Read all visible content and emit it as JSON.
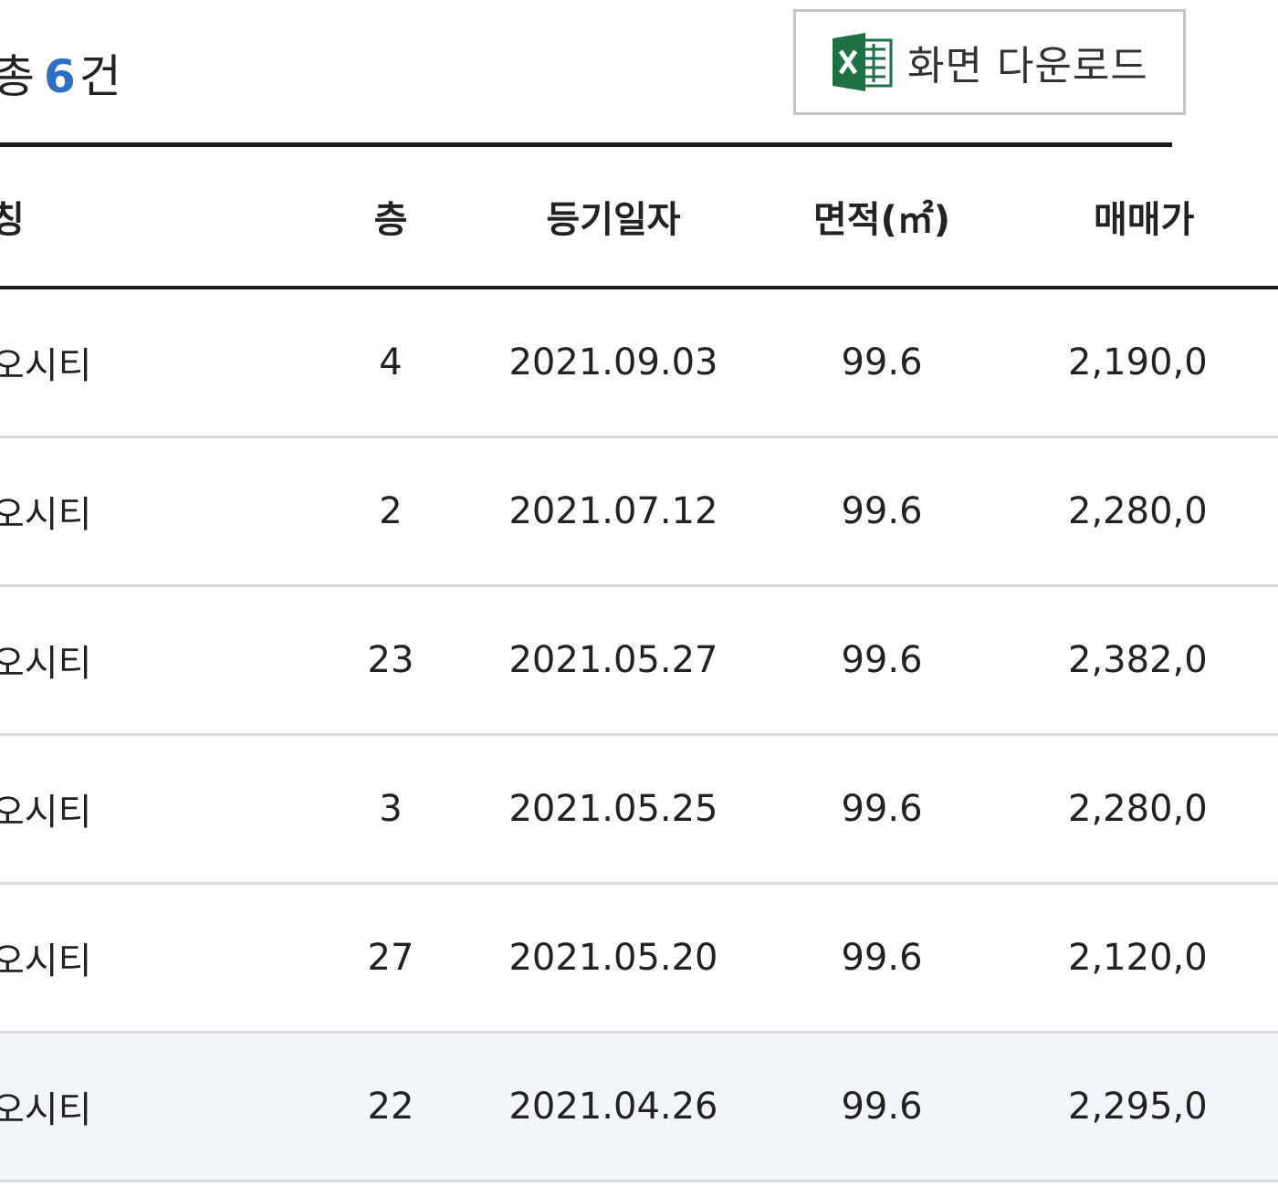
{
  "summary": {
    "prefix": "총",
    "count": "6",
    "suffix": "건"
  },
  "download": {
    "icon": "excel-icon",
    "label": "화면 다운로드"
  },
  "table": {
    "headers": {
      "name": "칭",
      "floor": "층",
      "date": "등기일자",
      "area": "면적(㎡)",
      "price": "매매가"
    },
    "rows": [
      {
        "name": "오시티",
        "floor": "4",
        "date": "2021.09.03",
        "area": "99.6",
        "price": "2,190,0"
      },
      {
        "name": "오시티",
        "floor": "2",
        "date": "2021.07.12",
        "area": "99.6",
        "price": "2,280,0"
      },
      {
        "name": "오시티",
        "floor": "23",
        "date": "2021.05.27",
        "area": "99.6",
        "price": "2,382,0"
      },
      {
        "name": "오시티",
        "floor": "3",
        "date": "2021.05.25",
        "area": "99.6",
        "price": "2,280,0"
      },
      {
        "name": "오시티",
        "floor": "27",
        "date": "2021.05.20",
        "area": "99.6",
        "price": "2,120,0"
      },
      {
        "name": "오시티",
        "floor": "22",
        "date": "2021.04.26",
        "area": "99.6",
        "price": "2,295,0"
      }
    ],
    "highlight_row": 5
  },
  "colors": {
    "accent": "#2e6fc4",
    "excel_green": "#1e7145",
    "row_highlight": "#f2f6fa"
  }
}
